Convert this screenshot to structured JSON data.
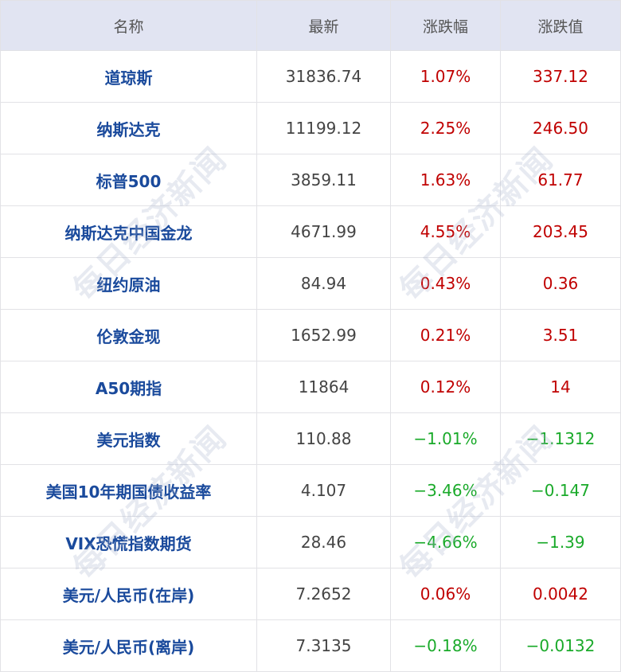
{
  "headers": [
    "名称",
    "最新",
    "涨跌幅",
    "涨跌值"
  ],
  "colors": {
    "header_bg": "#e1e4f2",
    "name": "#1a4a9c",
    "up": "#c00000",
    "down": "#1aaa2a"
  },
  "watermark": "每日经济新闻",
  "rows": [
    {
      "name": "道琼斯",
      "latest": "31836.74",
      "pct": "1.07%",
      "change": "337.12",
      "dir": "up"
    },
    {
      "name": "纳斯达克",
      "latest": "11199.12",
      "pct": "2.25%",
      "change": "246.50",
      "dir": "up"
    },
    {
      "name": "标普500",
      "latest": "3859.11",
      "pct": "1.63%",
      "change": "61.77",
      "dir": "up"
    },
    {
      "name": "纳斯达克中国金龙",
      "latest": "4671.99",
      "pct": "4.55%",
      "change": "203.45",
      "dir": "up"
    },
    {
      "name": "纽约原油",
      "latest": "84.94",
      "pct": "0.43%",
      "change": "0.36",
      "dir": "up"
    },
    {
      "name": "伦敦金现",
      "latest": "1652.99",
      "pct": "0.21%",
      "change": "3.51",
      "dir": "up"
    },
    {
      "name": "A50期指",
      "latest": "11864",
      "pct": "0.12%",
      "change": "14",
      "dir": "up"
    },
    {
      "name": "美元指数",
      "latest": "110.88",
      "pct": "−1.01%",
      "change": "−1.1312",
      "dir": "down"
    },
    {
      "name": "美国10年期国债收益率",
      "latest": "4.107",
      "pct": "−3.46%",
      "change": "−0.147",
      "dir": "down"
    },
    {
      "name": "VIX恐慌指数期货",
      "latest": "28.46",
      "pct": "−4.66%",
      "change": "−1.39",
      "dir": "down"
    },
    {
      "name": "美元/人民币(在岸)",
      "latest": "7.2652",
      "pct": "0.06%",
      "change": "0.0042",
      "dir": "up"
    },
    {
      "name": "美元/人民币(离岸)",
      "latest": "7.3135",
      "pct": "−0.18%",
      "change": "−0.0132",
      "dir": "down"
    }
  ]
}
